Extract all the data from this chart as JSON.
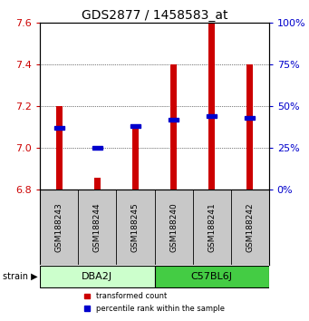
{
  "title": "GDS2877 / 1458583_at",
  "samples": [
    "GSM188243",
    "GSM188244",
    "GSM188245",
    "GSM188240",
    "GSM188241",
    "GSM188242"
  ],
  "red_values": [
    7.2,
    6.86,
    7.1,
    7.4,
    7.6,
    7.4
  ],
  "blue_percentiles": [
    37,
    25,
    38,
    42,
    44,
    43
  ],
  "y_min": 6.8,
  "y_max": 7.6,
  "y_ticks": [
    6.8,
    7.0,
    7.2,
    7.4,
    7.6
  ],
  "percentile_min": 0,
  "percentile_max": 100,
  "percentile_ticks": [
    0,
    25,
    50,
    75,
    100
  ],
  "bar_color": "#cc0000",
  "dot_color": "#0000cc",
  "background_color": "#ffffff",
  "title_fontsize": 10,
  "tick_fontsize": 8,
  "bar_width": 0.18,
  "group_dba_color": "#ccffcc",
  "group_c57_color": "#44cc44",
  "legend_red": "transformed count",
  "legend_blue": "percentile rank within the sample"
}
